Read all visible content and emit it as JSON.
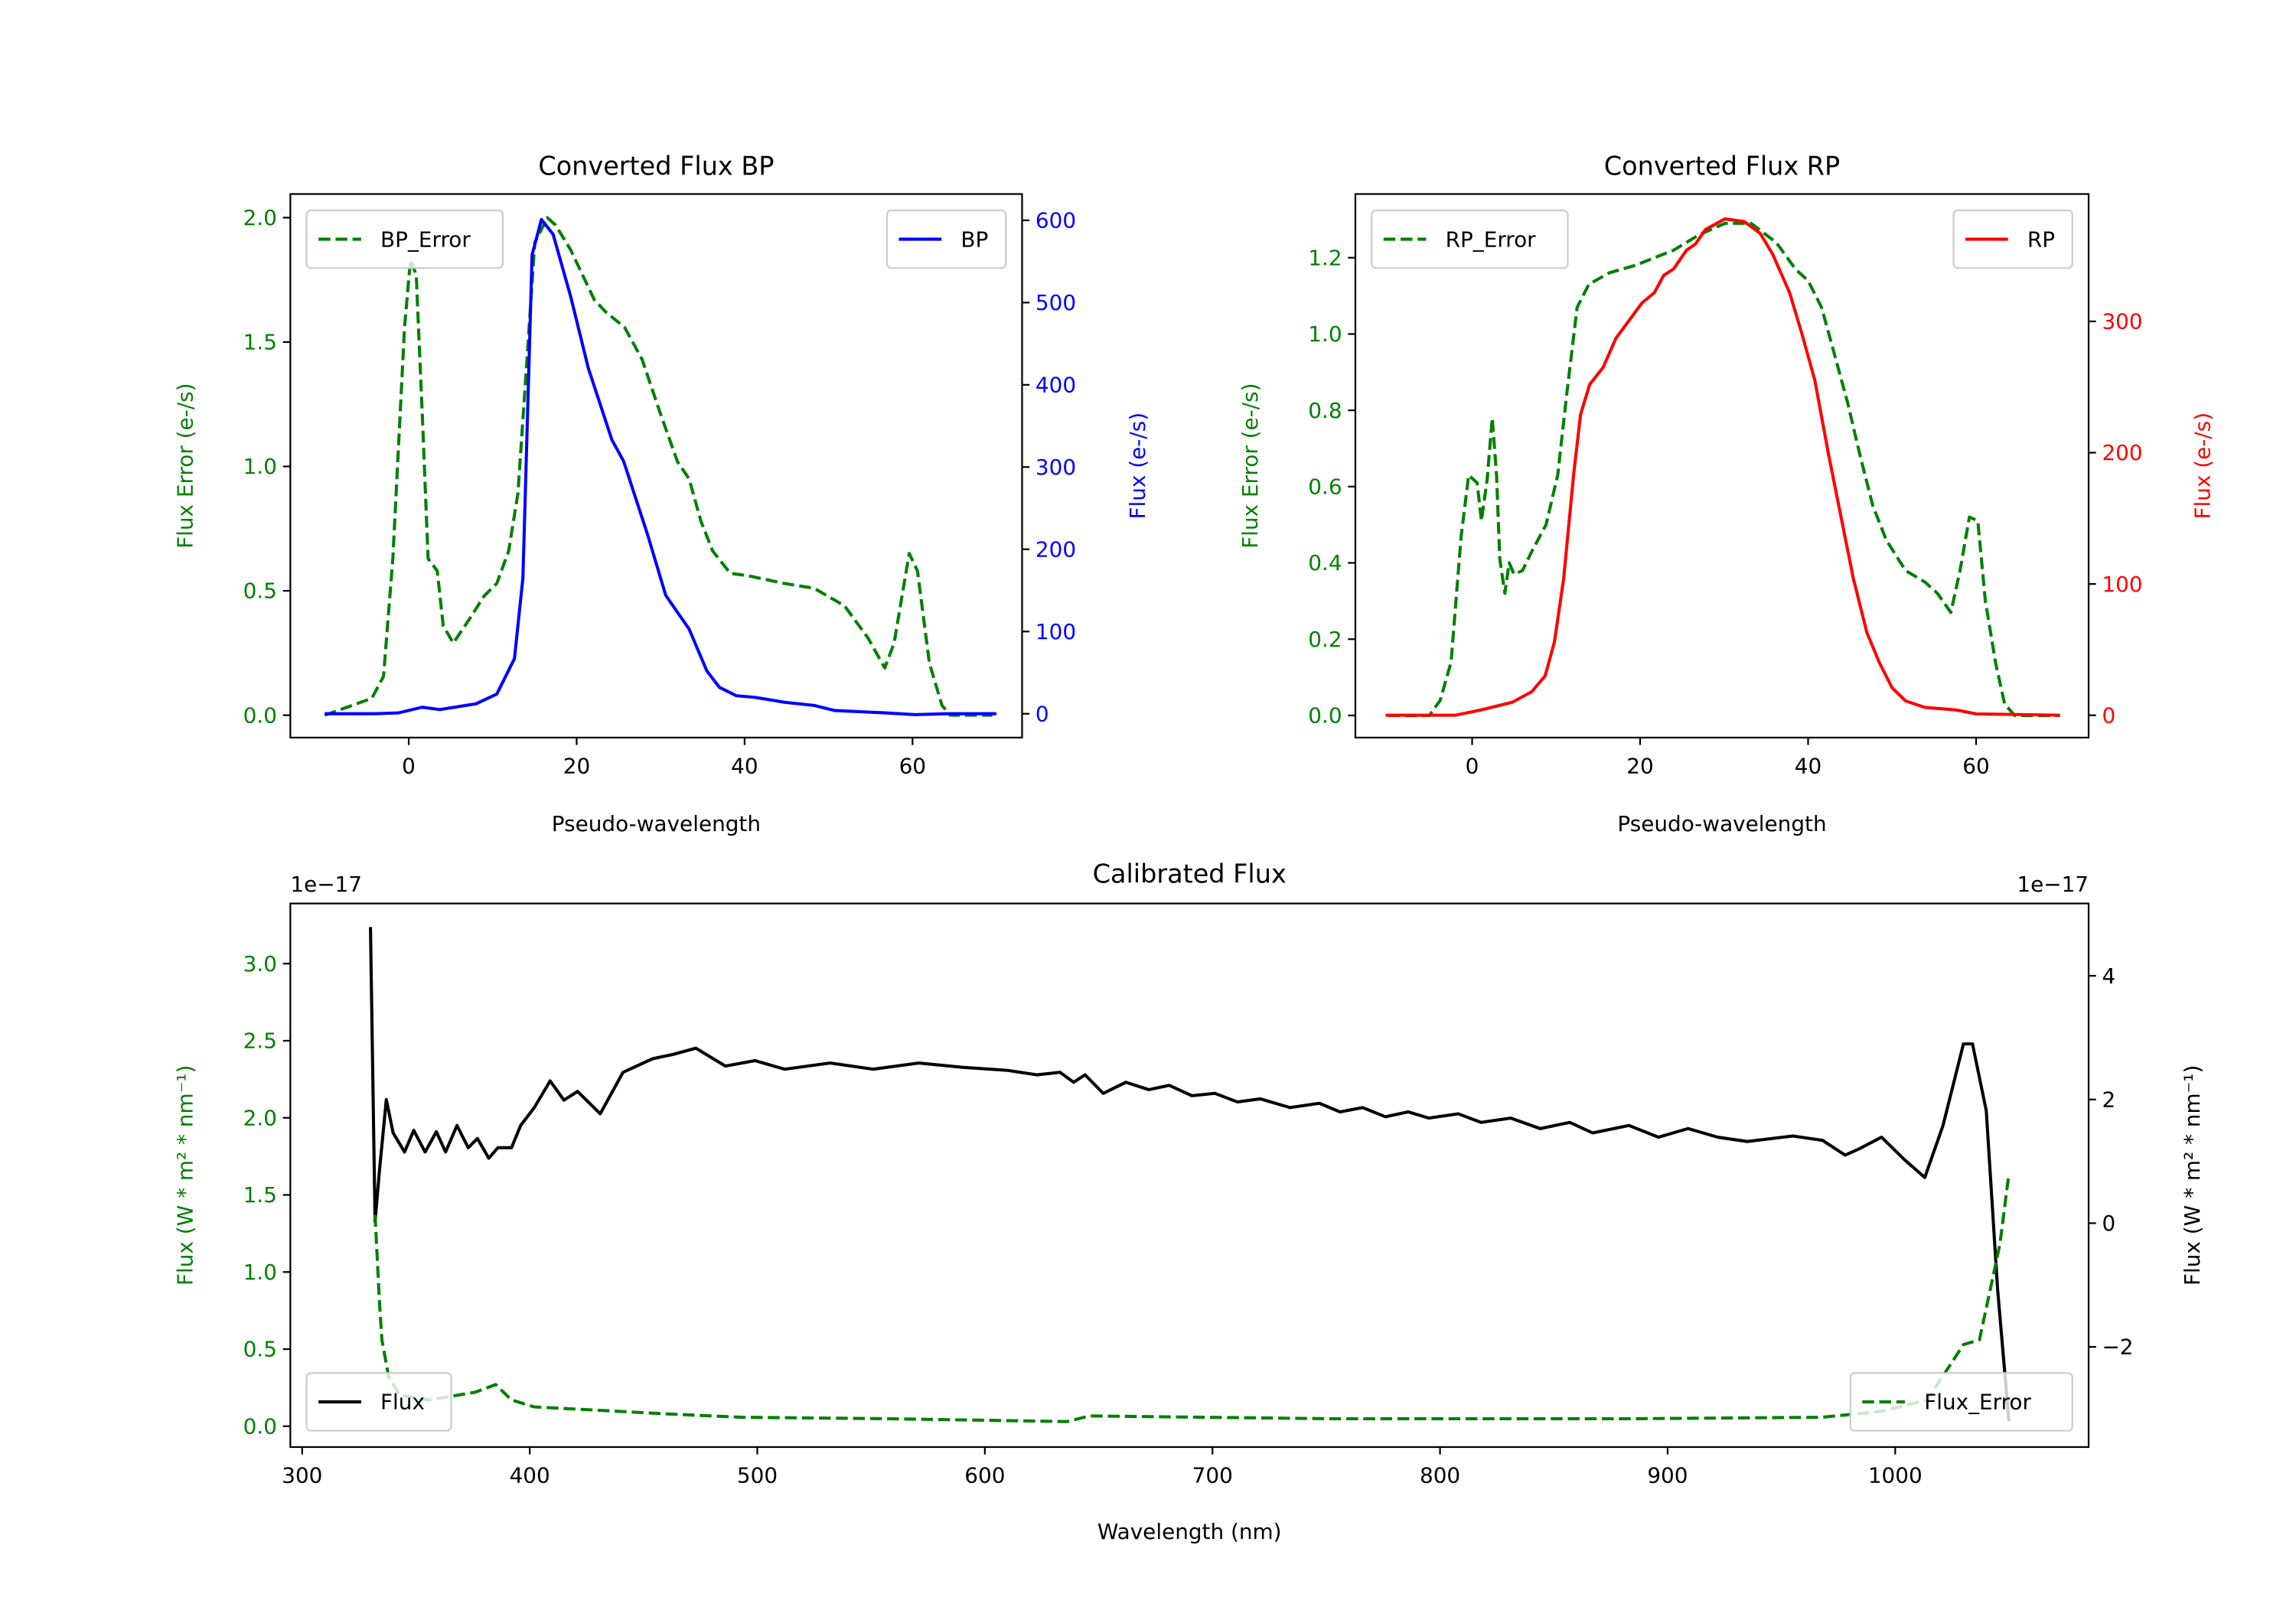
{
  "chart_data": [
    {
      "type": "line",
      "title": "Converted Flux BP",
      "xlabel": "Pseudo-wavelength",
      "ylabel_left": "Flux Error (e-/s)",
      "ylabel_right": "Flux (e-/s)",
      "xlim": [
        -14.1,
        73.05
      ],
      "xticks": [
        0,
        20,
        40,
        60
      ],
      "xtick_labels": [
        "0",
        "20",
        "40",
        "60"
      ],
      "ylim_left": [
        -0.09,
        2.095
      ],
      "yticks_left": [
        0,
        0.5,
        1.0,
        1.5,
        2.0
      ],
      "ytick_labels_left": [
        "0.0",
        "0.5",
        "1.0",
        "1.5",
        "2.0"
      ],
      "ylim_right": [
        -29,
        632
      ],
      "yticks_right": [
        0,
        100,
        200,
        300,
        400,
        500,
        600
      ],
      "ytick_labels_right": [
        "0",
        "100",
        "200",
        "300",
        "400",
        "500",
        "600"
      ],
      "left_color": "#008000",
      "right_color": "#0000ff",
      "series": [
        {
          "name": "BP_Error",
          "axis": "left",
          "color": "#008000",
          "style": "dashed",
          "legend": "upper-left",
          "x": [
            -10,
            -4.4,
            -3,
            -1.9,
            -0.5,
            0.2,
            0.9,
            1.6,
            2.3,
            3.4,
            4.1,
            5.3,
            7.3,
            9,
            10.5,
            11.9,
            13,
            14,
            15,
            16.5,
            17.5,
            19.3,
            22.1,
            23.5,
            25.7,
            27.8,
            29.9,
            32,
            33.4,
            34.8,
            36.2,
            38.3,
            40.5,
            44.7,
            48.3,
            51.9,
            54.7,
            56.7,
            57.8,
            59.6,
            60.6,
            62,
            63.5,
            64.5,
            69.5
          ],
          "y": [
            0,
            0.068,
            0.156,
            0.63,
            1.56,
            1.83,
            1.77,
            1.22,
            0.63,
            0.58,
            0.36,
            0.29,
            0.39,
            0.48,
            0.53,
            0.66,
            0.89,
            1.39,
            1.9,
            2.0,
            1.97,
            1.87,
            1.67,
            1.62,
            1.56,
            1.43,
            1.22,
            1.02,
            0.95,
            0.78,
            0.66,
            0.57,
            0.56,
            0.53,
            0.51,
            0.44,
            0.31,
            0.19,
            0.29,
            0.65,
            0.58,
            0.21,
            0.04,
            0,
            0
          ]
        },
        {
          "name": "BP",
          "axis": "right",
          "color": "#0000ff",
          "style": "solid",
          "legend": "upper-right",
          "x": [
            -10,
            -4,
            -1.2,
            1.6,
            3.7,
            8,
            10.5,
            12.6,
            13.6,
            14.7,
            15.8,
            17.2,
            19.3,
            21.4,
            24.2,
            25.6,
            28.5,
            30.6,
            33.4,
            35.5,
            37,
            39,
            41.2,
            44.7,
            48.3,
            50.7,
            56.7,
            60.3,
            64,
            70
          ],
          "y": [
            0,
            0,
            1,
            8,
            5,
            12,
            24,
            67,
            165,
            558,
            601,
            583,
            507,
            420,
            333,
            307,
            216,
            144,
            103,
            52,
            32,
            22,
            20,
            14,
            10,
            4,
            1,
            -1,
            0,
            0
          ]
        }
      ]
    },
    {
      "type": "line",
      "title": "Converted Flux RP",
      "xlabel": "Pseudo-wavelength",
      "ylabel_left": "Flux Error (e-/s)",
      "ylabel_right": "Flux (e-/s)",
      "xlim": [
        -13.9,
        73.4
      ],
      "xticks": [
        0,
        20,
        40,
        60
      ],
      "xtick_labels": [
        "0",
        "20",
        "40",
        "60"
      ],
      "ylim_left": [
        -0.058,
        1.367
      ],
      "yticks_left": [
        0,
        0.2,
        0.4,
        0.6,
        0.8,
        1.0,
        1.2
      ],
      "ytick_labels_left": [
        "0.0",
        "0.2",
        "0.4",
        "0.6",
        "0.8",
        "1.0",
        "1.2"
      ],
      "ylim_right": [
        -17,
        397
      ],
      "yticks_right": [
        0,
        100,
        200,
        300
      ],
      "ytick_labels_right": [
        "0",
        "100",
        "200",
        "300"
      ],
      "left_color": "#008000",
      "right_color": "#ff0000",
      "series": [
        {
          "name": "RP_Error",
          "axis": "left",
          "color": "#008000",
          "style": "dashed",
          "legend": "upper-left",
          "x": [
            -10,
            -5.1,
            -3.8,
            -2.5,
            -1.3,
            -0.4,
            0.6,
            1.1,
            1.8,
            2.4,
            2.9,
            3.3,
            3.9,
            4.4,
            5,
            6,
            7.1,
            8.8,
            10.2,
            11.3,
            12.5,
            13.9,
            16.3,
            19.4,
            24,
            27,
            30.1,
            33.2,
            36.2,
            38.5,
            40,
            41.6,
            43.1,
            44.7,
            46.2,
            47.7,
            49.3,
            51.6,
            53.9,
            55.4,
            57,
            58.1,
            59.2,
            60.2,
            61.1,
            62.3,
            63.4,
            64.6,
            70
          ],
          "y": [
            0,
            0,
            0.04,
            0.14,
            0.47,
            0.63,
            0.61,
            0.51,
            0.62,
            0.78,
            0.63,
            0.41,
            0.32,
            0.4,
            0.37,
            0.38,
            0.43,
            0.5,
            0.63,
            0.85,
            1.07,
            1.13,
            1.16,
            1.18,
            1.22,
            1.26,
            1.29,
            1.29,
            1.24,
            1.17,
            1.14,
            1.07,
            0.95,
            0.82,
            0.68,
            0.55,
            0.46,
            0.38,
            0.35,
            0.32,
            0.27,
            0.38,
            0.52,
            0.51,
            0.3,
            0.14,
            0.03,
            0,
            0
          ]
        },
        {
          "name": "RP",
          "axis": "right",
          "color": "#ff0000",
          "style": "solid",
          "legend": "upper-right",
          "x": [
            -10.3,
            -2,
            1,
            4.8,
            7.1,
            8.7,
            9.8,
            10.9,
            12.1,
            12.9,
            14,
            15.6,
            17.1,
            18.6,
            20.2,
            21.7,
            22.8,
            24,
            25.5,
            26.6,
            27.8,
            30.1,
            32.4,
            34.3,
            35.8,
            37.8,
            39.3,
            40.8,
            42.4,
            43.9,
            45.4,
            47,
            48.5,
            50,
            51.6,
            53.9,
            57.7,
            60,
            70
          ],
          "y": [
            0,
            0,
            4,
            10,
            18,
            30,
            56,
            104,
            184,
            229,
            252,
            265,
            287,
            300,
            314,
            322,
            335,
            340,
            354,
            359,
            370,
            378,
            376,
            367,
            351,
            322,
            290,
            255,
            200,
            152,
            104,
            63,
            40,
            21,
            11,
            6,
            4,
            1,
            0
          ]
        }
      ]
    },
    {
      "type": "line",
      "title": "Calibrated Flux",
      "xlabel": "Wavelength (nm)",
      "ylabel_left": "Flux (W * m² * nm⁻¹)",
      "ylabel_right": "Flux (W * m² * nm⁻¹)",
      "offset_left": "1e−17",
      "offset_right": "1e−17",
      "xlim": [
        294.8,
        1085
      ],
      "xticks": [
        300,
        400,
        500,
        600,
        700,
        800,
        900,
        1000
      ],
      "xtick_labels": [
        "300",
        "400",
        "500",
        "600",
        "700",
        "800",
        "900",
        "1000"
      ],
      "ylim_left": [
        -0.135,
        3.39
      ],
      "yticks_left": [
        0,
        0.5,
        1.0,
        1.5,
        2.0,
        2.5,
        3.0
      ],
      "ytick_labels_left": [
        "0.0",
        "0.5",
        "1.0",
        "1.5",
        "2.0",
        "2.5",
        "3.0"
      ],
      "ylim_right": [
        -3.62,
        5.17
      ],
      "yticks_right": [
        -2,
        0,
        2,
        4
      ],
      "ytick_labels_right": [
        "−2",
        "0",
        "2",
        "4"
      ],
      "left_color": "#008000",
      "right_color": "#000000",
      "series": [
        {
          "name": "Flux",
          "axis": "right",
          "color": "#000000",
          "style": "solid",
          "legend": "lower-left",
          "x": [
            330,
            332,
            334,
            337,
            340,
            345,
            349,
            354,
            359,
            363,
            368,
            373,
            377,
            382,
            386,
            392,
            396,
            402,
            409,
            415,
            421,
            431,
            441,
            454,
            463,
            473,
            486,
            499,
            512,
            532,
            551,
            571,
            590,
            610,
            623,
            633,
            639,
            644,
            652,
            662,
            672,
            681,
            691,
            701,
            711,
            721,
            734,
            747,
            756,
            766,
            776,
            786,
            795,
            808,
            818,
            831,
            844,
            857,
            867,
            883,
            896,
            909,
            922,
            935,
            955,
            968,
            978,
            984,
            994,
            1004,
            1013,
            1021,
            1030,
            1034,
            1040,
            1045,
            1050
          ],
          "y": [
            4.79,
            0.02,
            0.86,
            2.0,
            1.46,
            1.15,
            1.5,
            1.15,
            1.48,
            1.15,
            1.58,
            1.22,
            1.37,
            1.05,
            1.22,
            1.22,
            1.58,
            1.87,
            2.3,
            1.99,
            2.13,
            1.77,
            2.44,
            2.66,
            2.73,
            2.83,
            2.54,
            2.63,
            2.49,
            2.59,
            2.49,
            2.59,
            2.52,
            2.47,
            2.4,
            2.44,
            2.28,
            2.4,
            2.1,
            2.28,
            2.16,
            2.23,
            2.06,
            2.1,
            1.96,
            2.01,
            1.87,
            1.94,
            1.8,
            1.87,
            1.72,
            1.8,
            1.7,
            1.77,
            1.63,
            1.7,
            1.53,
            1.63,
            1.46,
            1.58,
            1.39,
            1.53,
            1.39,
            1.32,
            1.41,
            1.34,
            1.1,
            1.2,
            1.39,
            1.03,
            0.74,
            1.58,
            2.9,
            2.9,
            1.82,
            -1.05,
            -3.2
          ]
        },
        {
          "name": "Flux_Error",
          "axis": "left",
          "color": "#008000",
          "style": "dashed",
          "legend": "lower-right",
          "x": [
            332,
            334,
            335,
            338,
            343,
            356,
            376,
            385,
            392,
            402,
            428,
            460,
            493,
            558,
            636,
            646,
            753,
            883,
            968,
            994,
            1014,
            1023,
            1030,
            1037,
            1042,
            1046,
            1050
          ],
          "y": [
            1.37,
            0.8,
            0.56,
            0.32,
            0.2,
            0.17,
            0.22,
            0.27,
            0.17,
            0.125,
            0.105,
            0.08,
            0.058,
            0.048,
            0.03,
            0.067,
            0.048,
            0.048,
            0.058,
            0.096,
            0.17,
            0.37,
            0.53,
            0.56,
            0.9,
            1.18,
            1.64
          ]
        }
      ]
    }
  ]
}
